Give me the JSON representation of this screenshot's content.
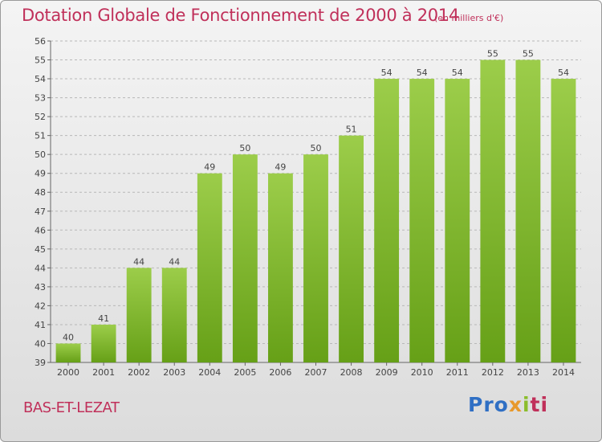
{
  "chart_data": {
    "type": "bar",
    "title": "Dotation Globale de Fonctionnement de 2000 à 2014",
    "subtitle": "(en milliers d'€)",
    "categories": [
      "2000",
      "2001",
      "2002",
      "2003",
      "2004",
      "2005",
      "2006",
      "2007",
      "2008",
      "2009",
      "2010",
      "2011",
      "2012",
      "2013",
      "2014"
    ],
    "values": [
      40,
      41,
      44,
      44,
      49,
      50,
      49,
      50,
      51,
      54,
      54,
      54,
      55,
      55,
      54
    ],
    "ylim": [
      39,
      56
    ],
    "yticks": [
      39,
      40,
      41,
      42,
      43,
      44,
      45,
      46,
      47,
      48,
      49,
      50,
      51,
      52,
      53,
      54,
      55,
      56
    ],
    "grid": true,
    "bar_color_light": "#9ccd4a",
    "bar_color_dark": "#66a017"
  },
  "footer": {
    "commune": "BAS-ET-LEZAT",
    "logo": {
      "p1": "Pro",
      "p2": "x",
      "p3": "i",
      "p4": "ti"
    }
  }
}
